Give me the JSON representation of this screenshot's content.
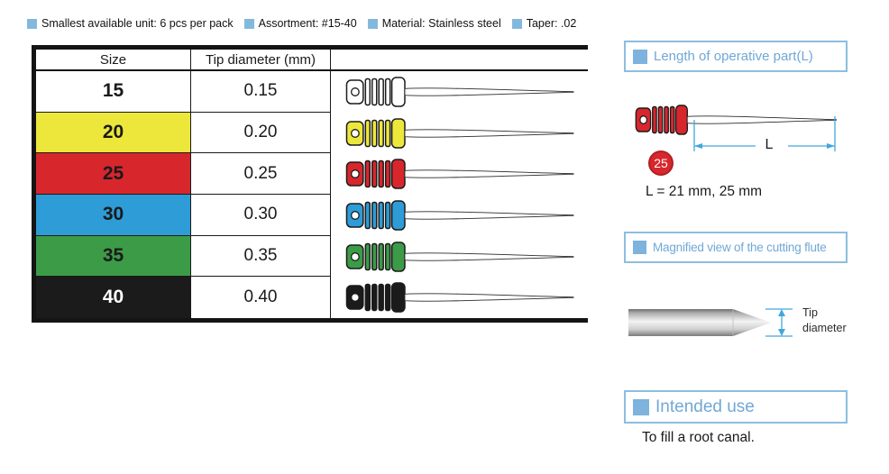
{
  "legend": {
    "bullet_color": "#83B8DD",
    "items": [
      {
        "label": "Smallest available unit: 6 pcs per pack"
      },
      {
        "label": "Assortment: #15-40"
      },
      {
        "label": "Material: Stainless steel"
      },
      {
        "label": "Taper: .02"
      }
    ]
  },
  "table": {
    "headers": {
      "size": "Size",
      "tip_diameter": "Tip diameter (mm)"
    },
    "rows": [
      {
        "size": "15",
        "tip_diameter": "0.15",
        "color": "#FFFFFF",
        "text_color": "#1a1a1a"
      },
      {
        "size": "20",
        "tip_diameter": "0.20",
        "color": "#EDE73B",
        "text_color": "#1a1a1a"
      },
      {
        "size": "25",
        "tip_diameter": "0.25",
        "color": "#D8262D",
        "text_color": "#1a1a1a"
      },
      {
        "size": "30",
        "tip_diameter": "0.30",
        "color": "#2E9CD6",
        "text_color": "#1a1a1a"
      },
      {
        "size": "35",
        "tip_diameter": "0.35",
        "color": "#3C9B47",
        "text_color": "#1a1a1a"
      },
      {
        "size": "40",
        "tip_diameter": "0.40",
        "color": "#1B1B1B",
        "text_color": "#ffffff"
      }
    ]
  },
  "panels": {
    "accent": {
      "border": "#8CBEE0",
      "square": "#7DB3DC",
      "title_text": "#70A8D6",
      "dimension": "#41A7DC"
    },
    "length": {
      "title": "Length of operative part(L)",
      "file_color": "#D8262D",
      "badge": "25",
      "badge_color": "#D8262D",
      "dimension_label": "L",
      "length_text": "L = 21 mm, 25 mm"
    },
    "flute": {
      "title": "Magnified view of the cutting flute",
      "dimension_label": "Tip diameter"
    },
    "use": {
      "title": "Intended use",
      "text": "To fill a root canal."
    }
  }
}
